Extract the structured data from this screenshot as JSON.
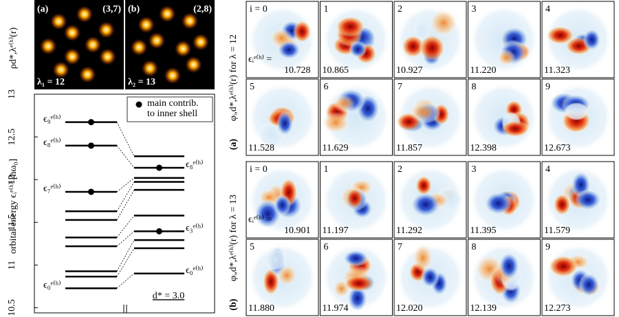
{
  "density": [
    {
      "tag": "(a)",
      "config_label": "(3,7)",
      "shells": [
        3,
        7
      ],
      "lambda_label": "λ₁ = 12"
    },
    {
      "tag": "(b)",
      "config_label": "(2,8)",
      "shells": [
        2,
        8
      ],
      "lambda_label": "λ₂ = 13"
    }
  ],
  "density_axis_label": "ρd*,λᵉ⁽ʰ⁾(r)",
  "energy_plot": {
    "axis_label": "orbital energy ϵᵢᵉ⁽ʰ⁾ [ħω₀]",
    "ylim": [
      10.44,
      13.0
    ],
    "yticks": [
      10.5,
      11,
      11.5,
      12,
      12.5,
      13
    ],
    "legend": [
      "main contrib.",
      "to inner shell"
    ],
    "annotation": "d* = 3.0",
    "level_labels": [
      [
        {
          "level": 0,
          "label": "ϵ₀ᵉ⁽ʰ⁾"
        },
        {
          "level": 7,
          "label": "ϵ₇ᵉ⁽ʰ⁾"
        },
        {
          "level": 8,
          "label": "ϵ₈ᵉ⁽ʰ⁾"
        },
        {
          "level": 9,
          "label": "ϵ₉ᵉ⁽ʰ⁾"
        }
      ],
      [
        {
          "level": 0,
          "label": "ϵ₀ᵉ⁽ʰ⁾"
        },
        {
          "level": 3,
          "label": "ϵ₃ᵉ⁽ʰ⁾"
        },
        {
          "level": 8,
          "label": "ϵ₈ᵉ⁽ʰ⁾"
        }
      ]
    ],
    "main_contrib": [
      [
        7,
        8,
        9
      ],
      [
        3,
        8
      ]
    ]
  },
  "orbitals": [
    {
      "tag": "(a)",
      "side_label": "φᵢ,d*,λᵉ⁽ʰ⁾(r) for λ = 12",
      "indices": [
        "i = 0",
        "1",
        "2",
        "3",
        "4",
        "5",
        "6",
        "7",
        "8",
        "9"
      ],
      "energy_prefix": "ϵᵢᵉ⁽ʰ⁾ =",
      "energies": [
        10.728,
        10.865,
        10.927,
        11.22,
        11.323,
        11.528,
        11.629,
        11.857,
        12.398,
        12.673
      ],
      "energy_labels": [
        "10.728",
        "10.865",
        "10.927",
        "11.220",
        "11.323",
        "11.528",
        "11.629",
        "11.857",
        "12.398",
        "12.673"
      ]
    },
    {
      "tag": "(b)",
      "side_label": "φᵢ,d*,λᵉ⁽ʰ⁾(r) for λ = 13",
      "indices": [
        "i = 0",
        "1",
        "2",
        "3",
        "4",
        "5",
        "6",
        "7",
        "8",
        "9"
      ],
      "energy_prefix": "ϵᵢᵉ⁽ʰ⁾ =",
      "energies": [
        10.901,
        11.197,
        11.292,
        11.395,
        11.579,
        11.88,
        11.974,
        12.02,
        12.139,
        12.273
      ],
      "energy_labels": [
        "10.901",
        "11.197",
        "11.292",
        "11.395",
        "11.579",
        "11.880",
        "11.974",
        "12.020",
        "12.139",
        "12.273"
      ]
    }
  ]
}
